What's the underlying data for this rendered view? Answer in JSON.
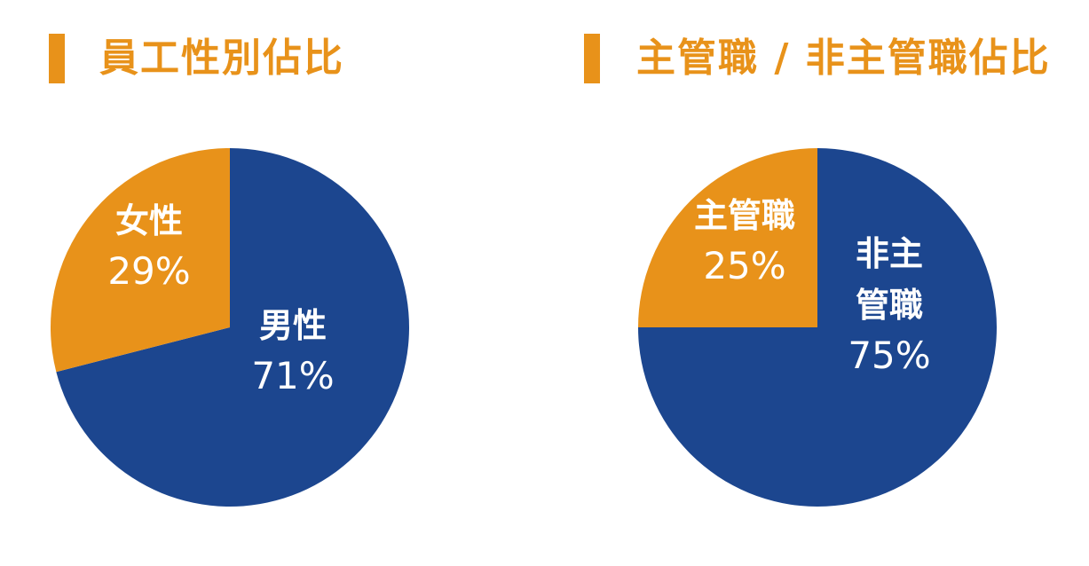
{
  "colors": {
    "accent": "#E8921A",
    "blue": "#1C468F",
    "white": "#FFFFFF"
  },
  "chart_data": [
    {
      "type": "pie",
      "title": "員工性別佔比",
      "slices": [
        {
          "name_lines": [
            "男性"
          ],
          "value": 71,
          "label": "71%",
          "color": "#1C468F"
        },
        {
          "name_lines": [
            "女性"
          ],
          "value": 29,
          "label": "29%",
          "color": "#E8921A"
        }
      ]
    },
    {
      "type": "pie",
      "title": "主管職 / 非主管職佔比",
      "slices": [
        {
          "name_lines": [
            "非主",
            "管職"
          ],
          "value": 75,
          "label": "75%",
          "color": "#1C468F"
        },
        {
          "name_lines": [
            "主管職"
          ],
          "value": 25,
          "label": "25%",
          "color": "#E8921A"
        }
      ]
    }
  ]
}
